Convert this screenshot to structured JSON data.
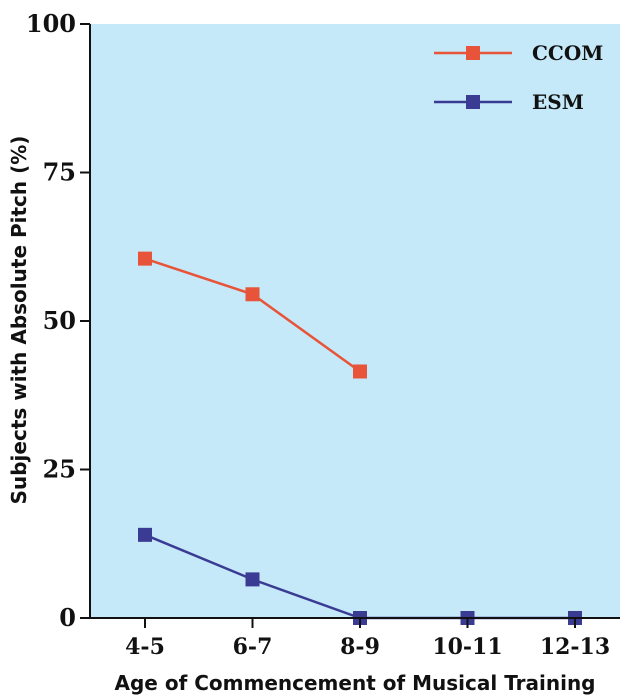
{
  "chart_data": {
    "type": "line",
    "categories": [
      "4-5",
      "6-7",
      "8-9",
      "10-11",
      "12-13"
    ],
    "series": [
      {
        "name": "CCOM",
        "values": [
          60.5,
          54.5,
          41.5,
          null,
          null
        ],
        "color": "#e8543a"
      },
      {
        "name": "ESM",
        "values": [
          14,
          6.5,
          0,
          0,
          0
        ],
        "color": "#3a3b93"
      }
    ],
    "xlabel": "Age of Commencement of Musical Training",
    "ylabel": "Subjects with Absolute Pitch (%)",
    "ylim": [
      0,
      100
    ],
    "yticks": [
      0,
      25,
      50,
      75,
      100
    ],
    "legend_position": "top-right",
    "grid": false,
    "plot_background": "#c5e9f8"
  }
}
